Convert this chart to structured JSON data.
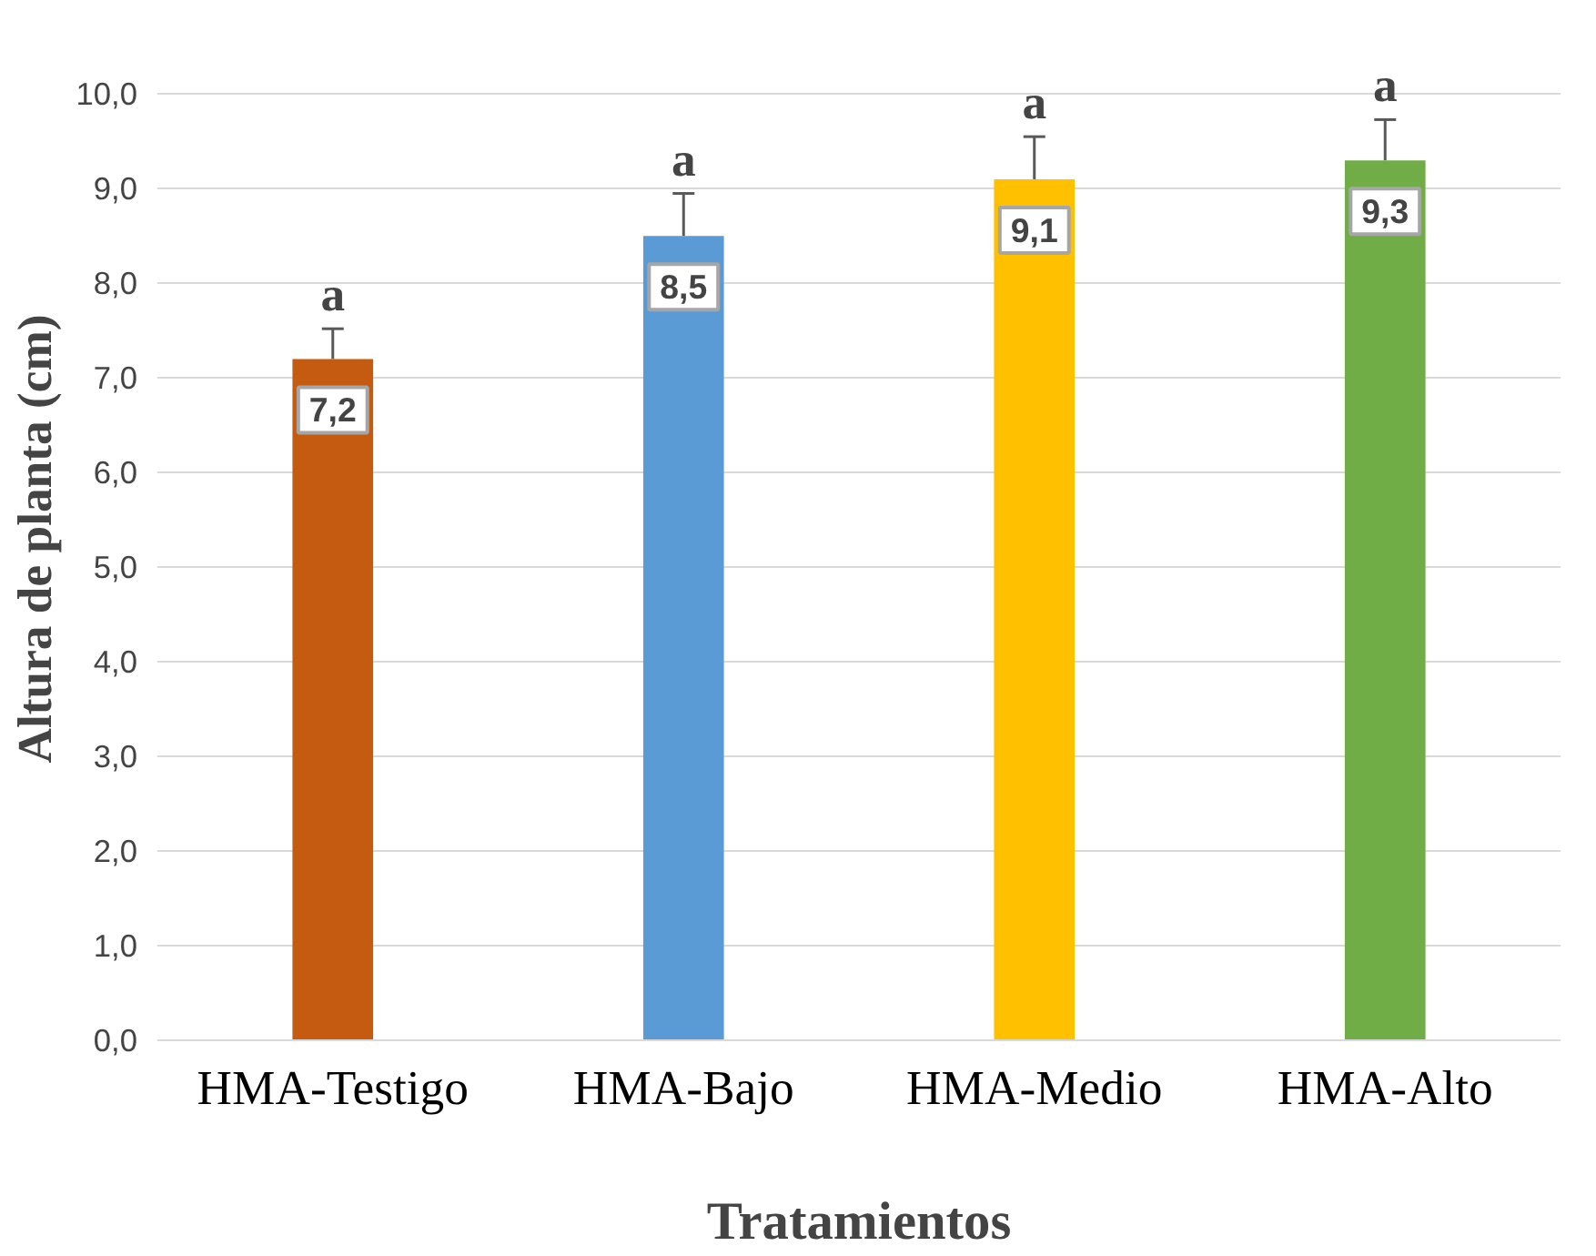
{
  "chart_data": {
    "type": "bar",
    "xlabel": "Tratamientos",
    "ylabel": "Altura de planta (cm)",
    "categories": [
      "HMA-Testigo",
      "HMA-Bajo",
      "HMA-Medio",
      "HMA-Alto"
    ],
    "values": [
      7.2,
      8.5,
      9.1,
      9.3
    ],
    "colors": [
      "#c55a11",
      "#5b9bd5",
      "#ffc000",
      "#70ad47"
    ],
    "errors": [
      [
        7.2,
        7.52
      ],
      [
        8.5,
        8.95
      ],
      [
        9.1,
        9.55
      ],
      [
        9.3,
        9.73
      ]
    ],
    "value_labels": [
      "7,2",
      "8,5",
      "9,1",
      "9,3"
    ],
    "annotations": [
      "a",
      "a",
      "a",
      "a"
    ],
    "ylim": [
      0,
      10
    ],
    "yticks": [
      {
        "value": 0,
        "label": "0,0"
      },
      {
        "value": 1,
        "label": "1,0"
      },
      {
        "value": 2,
        "label": "2,0"
      },
      {
        "value": 3,
        "label": "3,0"
      },
      {
        "value": 4,
        "label": "4,0"
      },
      {
        "value": 5,
        "label": "5,0"
      },
      {
        "value": 6,
        "label": "6,0"
      },
      {
        "value": 7,
        "label": "7,0"
      },
      {
        "value": 8,
        "label": "8,0"
      },
      {
        "value": 9,
        "label": "9,0"
      },
      {
        "value": 10,
        "label": "10,0"
      }
    ],
    "grid": "y"
  }
}
